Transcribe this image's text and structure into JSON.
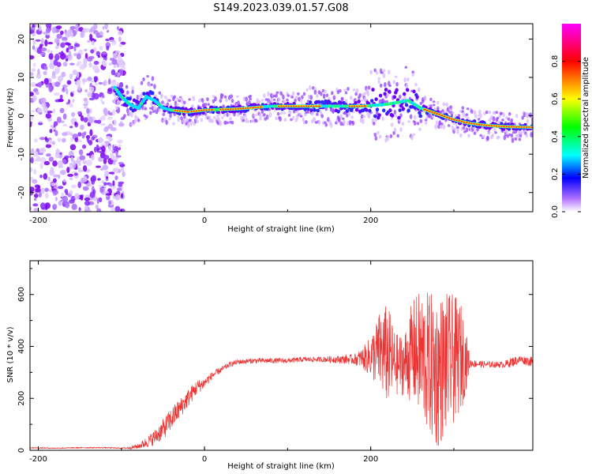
{
  "title": "S149.2023.039.01.57.G08",
  "chart_data": [
    {
      "type": "heatmap",
      "xlabel": "Height of straight line (km)",
      "ylabel": "Frequency (Hz)",
      "xlim": [
        -210,
        395
      ],
      "ylim": [
        -25,
        24
      ],
      "xticks": [
        -200,
        0,
        200
      ],
      "yticks": [
        20,
        10,
        0,
        -10,
        -20
      ],
      "colorbar": {
        "label": "Normalized spectral amplitude",
        "range": [
          0,
          1
        ],
        "ticks": [
          0.0,
          0.2,
          0.4,
          0.6,
          0.8
        ],
        "tick_labels": [
          "0.0",
          "0.2",
          "0.4",
          "0.6",
          "0.8"
        ],
        "colormap": [
          "#ffffff",
          "#8a00ff",
          "#0000ff",
          "#00ffff",
          "#00ff00",
          "#ffff00",
          "#ff0000",
          "#ff00ff"
        ]
      },
      "ridge": {
        "x": [
          -110,
          -100,
          -90,
          -80,
          -70,
          -60,
          -50,
          -40,
          -20,
          0,
          40,
          80,
          120,
          160,
          190,
          220,
          245,
          260,
          280,
          300,
          320,
          340,
          360,
          395
        ],
        "y": [
          8,
          5,
          3,
          2,
          5,
          4,
          2,
          1.5,
          1,
          1.5,
          1.8,
          2.5,
          2.5,
          2.5,
          2.5,
          3,
          4,
          2,
          0.5,
          -1,
          -2,
          -2.5,
          -2.8,
          -3
        ]
      },
      "noise_region_x": [
        -210,
        -105
      ]
    },
    {
      "type": "line",
      "xlabel": "Height of straight line (km)",
      "ylabel": "SNR (10 * v/v)",
      "xlim": [
        -210,
        395
      ],
      "ylim": [
        0,
        730
      ],
      "xticks": [
        -200,
        0,
        200
      ],
      "yticks": [
        0,
        200,
        400,
        600
      ],
      "color": "#ee3333",
      "series": [
        {
          "x": [
            -210,
            -180,
            -150,
            -120,
            -100,
            -90,
            -80,
            -70,
            -60,
            -50,
            -40,
            -30,
            -20,
            -10,
            0,
            10,
            20,
            30,
            40,
            60,
            80,
            100,
            120,
            140,
            160,
            180,
            190,
            200,
            210,
            220,
            230,
            240,
            250,
            260,
            270,
            280,
            290,
            300,
            310,
            320,
            340,
            360,
            370,
            380,
            395
          ],
          "y": [
            10,
            8,
            10,
            10,
            8,
            10,
            15,
            30,
            50,
            80,
            120,
            160,
            200,
            240,
            260,
            290,
            310,
            330,
            340,
            345,
            345,
            345,
            350,
            350,
            350,
            350,
            355,
            360,
            380,
            370,
            330,
            330,
            380,
            370,
            330,
            300,
            330,
            350,
            360,
            335,
            330,
            330,
            340,
            350,
            340
          ],
          "amplitude": [
            2,
            2,
            2,
            2,
            2,
            5,
            10,
            20,
            30,
            40,
            45,
            40,
            35,
            30,
            20,
            15,
            12,
            10,
            10,
            10,
            10,
            10,
            10,
            10,
            15,
            20,
            40,
            80,
            150,
            200,
            120,
            120,
            200,
            250,
            280,
            300,
            280,
            250,
            200,
            15,
            12,
            12,
            20,
            15,
            20
          ]
        }
      ]
    }
  ]
}
